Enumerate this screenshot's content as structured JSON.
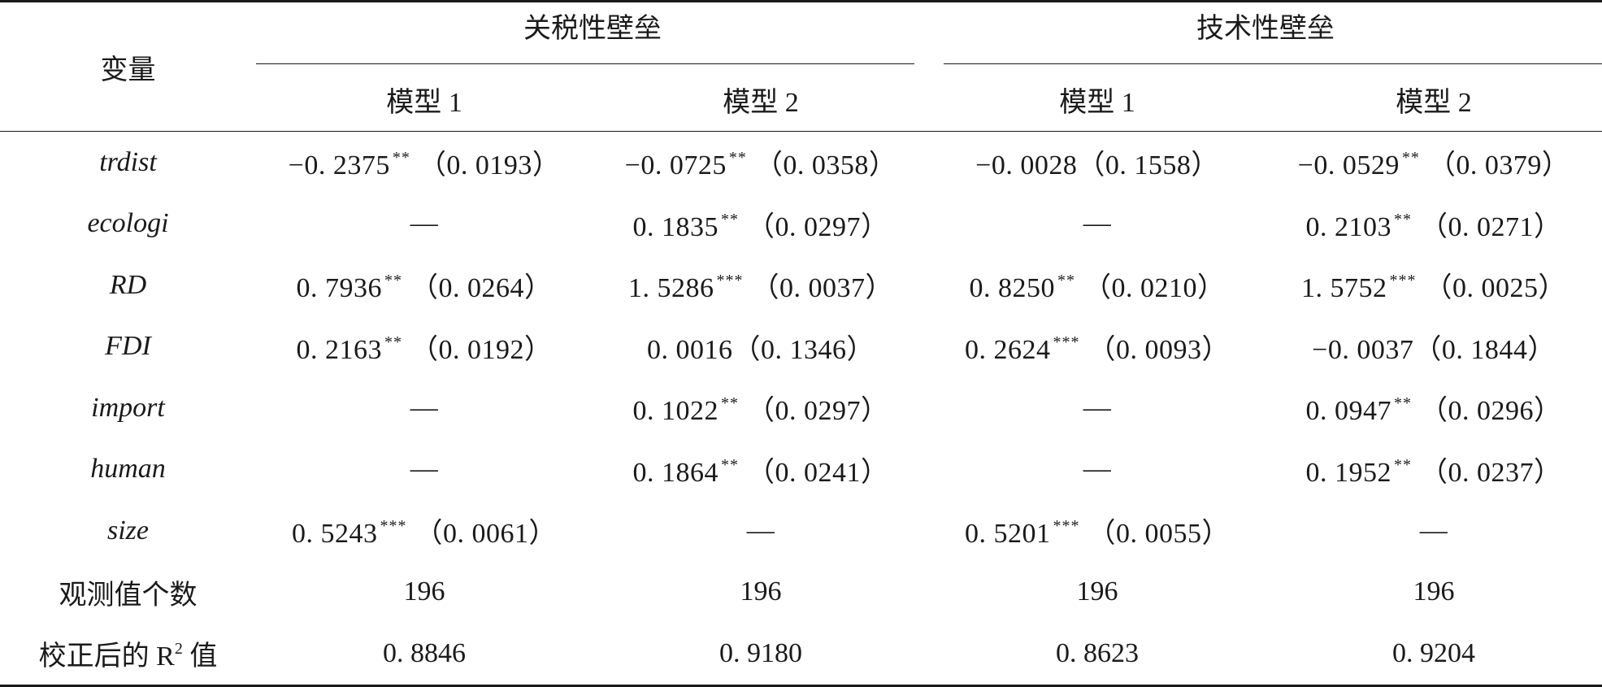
{
  "header": {
    "variable_label": "变量",
    "groups": [
      "关税性壁垒",
      "技术性壁垒"
    ],
    "models": [
      "模型 1",
      "模型 2",
      "模型 1",
      "模型 2"
    ]
  },
  "rows": [
    {
      "name": "trdist",
      "cells": [
        {
          "coef": "−0. 2375",
          "sig": "**",
          "se": "（0. 0193）"
        },
        {
          "coef": "−0. 0725",
          "sig": "**",
          "se": "（0. 0358）"
        },
        {
          "coef": "−0. 0028",
          "sig": "",
          "se": "（0. 1558）"
        },
        {
          "coef": "−0. 0529",
          "sig": "**",
          "se": "（0. 0379）"
        }
      ]
    },
    {
      "name": "ecologi",
      "cells": [
        {
          "dash": "—"
        },
        {
          "coef": "0. 1835",
          "sig": "**",
          "se": "（0. 0297）"
        },
        {
          "dash": "—"
        },
        {
          "coef": "0. 2103",
          "sig": "**",
          "se": "（0. 0271）"
        }
      ]
    },
    {
      "name": "RD",
      "cells": [
        {
          "coef": "0. 7936",
          "sig": "**",
          "se": "（0. 0264）"
        },
        {
          "coef": "1. 5286",
          "sig": "***",
          "se": "（0. 0037）"
        },
        {
          "coef": "0. 8250",
          "sig": "**",
          "se": "（0. 0210）"
        },
        {
          "coef": "1. 5752",
          "sig": "***",
          "se": "（0. 0025）"
        }
      ]
    },
    {
      "name": "FDI",
      "cells": [
        {
          "coef": "0. 2163",
          "sig": "**",
          "se": "（0. 0192）"
        },
        {
          "coef": "0. 0016",
          "sig": "",
          "se": "（0. 1346）"
        },
        {
          "coef": "0. 2624",
          "sig": "***",
          "se": "（0. 0093）"
        },
        {
          "coef": "−0. 0037",
          "sig": "",
          "se": "（0. 1844）"
        }
      ]
    },
    {
      "name": "import",
      "cells": [
        {
          "dash": "—"
        },
        {
          "coef": "0. 1022",
          "sig": "**",
          "se": "（0. 0297）"
        },
        {
          "dash": "—"
        },
        {
          "coef": "0. 0947",
          "sig": "**",
          "se": "（0. 0296）"
        }
      ]
    },
    {
      "name": "human",
      "cells": [
        {
          "dash": "—"
        },
        {
          "coef": "0. 1864",
          "sig": "**",
          "se": "（0. 0241）"
        },
        {
          "dash": "—"
        },
        {
          "coef": "0. 1952",
          "sig": "**",
          "se": "（0. 0237）"
        }
      ]
    },
    {
      "name": "size",
      "cells": [
        {
          "coef": "0. 5243",
          "sig": "***",
          "se": "（0. 0061）"
        },
        {
          "dash": "—"
        },
        {
          "coef": "0. 5201",
          "sig": "***",
          "se": "（0. 0055）"
        },
        {
          "dash": "—"
        }
      ]
    }
  ],
  "observations": {
    "label": "观测值个数",
    "values": [
      "196",
      "196",
      "196",
      "196"
    ]
  },
  "r2": {
    "label_prefix": "校正后的 R",
    "label_sup": "2",
    "label_suffix": " 值",
    "values": [
      "0. 8846",
      "0. 9180",
      "0. 8623",
      "0. 9204"
    ]
  }
}
